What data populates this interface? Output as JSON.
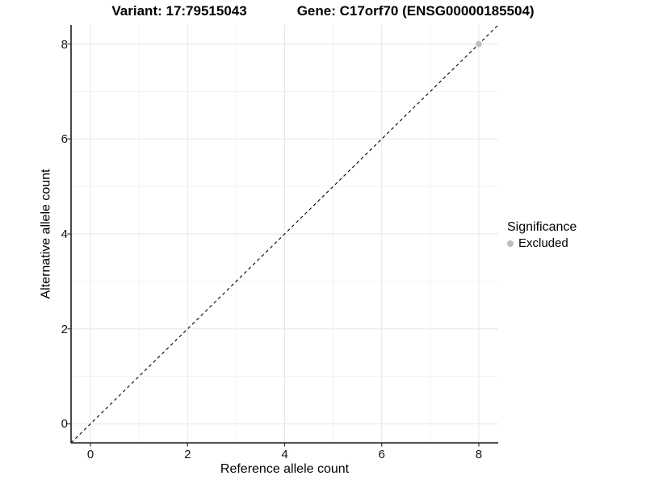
{
  "header": {
    "variant_title": "Variant: 17:79515043",
    "gene_title": "Gene: C17orf70 (ENSG00000185504)"
  },
  "axes": {
    "x_label": "Reference allele count",
    "y_label": "Alternative allele count"
  },
  "legend": {
    "title": "Significance",
    "items": [
      {
        "label": "Excluded",
        "color": "#bdbdbd"
      }
    ]
  },
  "colors": {
    "background": "#ffffff",
    "grid_major": "#e6e6e6",
    "grid_minor": "#f3f3f3",
    "axis_line": "#1a1a1a",
    "tick_mark": "#333333",
    "dashed_line": "#000000",
    "point": "#bdbdbd",
    "text": "#000000"
  },
  "chart_data": {
    "type": "scatter",
    "title": "Variant: 17:79515043    Gene: C17orf70 (ENSG00000185504)",
    "xlabel": "Reference allele count",
    "ylabel": "Alternative allele count",
    "xlim": [
      -0.4,
      8.4
    ],
    "ylim": [
      -0.4,
      8.4
    ],
    "x_ticks": [
      0,
      2,
      4,
      6,
      8
    ],
    "y_ticks": [
      0,
      2,
      4,
      6,
      8
    ],
    "x_minor_ticks": [
      1,
      3,
      5,
      7
    ],
    "y_minor_ticks": [
      1,
      3,
      5,
      7
    ],
    "grid": true,
    "legend_position": "right",
    "reference_line": {
      "slope": 1,
      "intercept": 0,
      "style": "dashed",
      "color": "#000000"
    },
    "series": [
      {
        "name": "Excluded",
        "color": "#bdbdbd",
        "points": [
          {
            "x": 8,
            "y": 8
          }
        ]
      }
    ]
  }
}
